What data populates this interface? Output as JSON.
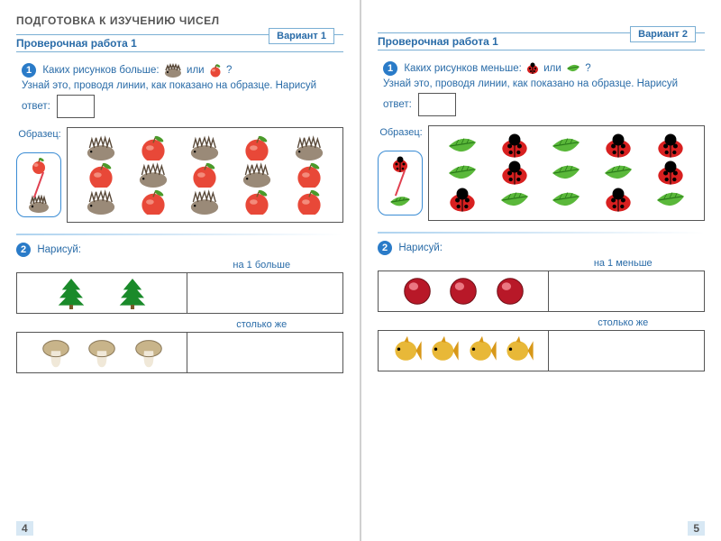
{
  "section_title": "ПОДГОТОВКА К ИЗУЧЕНИЮ ЧИСЕЛ",
  "left": {
    "work_title": "Проверочная работа 1",
    "variant": "Вариант 1",
    "task1": {
      "num": "1",
      "text_a": "Каких рисунков больше:",
      "text_b": "или",
      "text_c": "?",
      "text_d": "Узнай это, проводя линии, как показано на образце. Нарисуй ответ:"
    },
    "example_label": "Образец:",
    "example_pair": {
      "top": "apple",
      "bottom": "hedgehog"
    },
    "grid": {
      "rows": 3,
      "pattern": [
        [
          "hedgehog",
          "apple",
          "hedgehog",
          "apple",
          "hedgehog"
        ],
        [
          "apple",
          "hedgehog",
          "apple",
          "hedgehog",
          "apple"
        ],
        [
          "hedgehog",
          "apple",
          "hedgehog",
          "apple",
          "apple"
        ]
      ]
    },
    "task2": {
      "num": "2",
      "label": "Нарисуй:",
      "row1_label": "на 1 больше",
      "row1_items": {
        "type": "tree",
        "count": 2,
        "color": "#1a8a2a"
      },
      "row2_label": "столько же",
      "row2_items": {
        "type": "mushroom",
        "count": 3,
        "cap_color": "#c8b48a",
        "stem_color": "#f0e8d8"
      }
    },
    "page_num": "4"
  },
  "right": {
    "work_title": "Проверочная работа 1",
    "variant": "Вариант 2",
    "task1": {
      "num": "1",
      "text_a": "Каких рисунков меньше:",
      "text_b": "или",
      "text_c": "?",
      "text_d": "Узнай это, проводя линии, как показано на образце. Нарисуй ответ:"
    },
    "example_label": "Образец:",
    "example_pair": {
      "top": "ladybug",
      "bottom": "leaf"
    },
    "grid": {
      "rows": 3,
      "pattern": [
        [
          "leaf",
          "ladybug",
          "leaf",
          "ladybug",
          "ladybug"
        ],
        [
          "leaf",
          "ladybug",
          "leaf",
          "leaf",
          "ladybug"
        ],
        [
          "ladybug",
          "leaf",
          "leaf",
          "ladybug",
          "leaf"
        ]
      ]
    },
    "task2": {
      "num": "2",
      "label": "Нарисуй:",
      "row1_label": "на 1 меньше",
      "row1_items": {
        "type": "ball",
        "count": 3,
        "color": "#b81828"
      },
      "row2_label": "столько же",
      "row2_items": {
        "type": "fish",
        "count": 4,
        "color": "#e8b838"
      }
    },
    "page_num": "5"
  },
  "icons": {
    "hedgehog": {
      "body": "#9a8a78",
      "spines": "#5a4a3a"
    },
    "apple": {
      "fill": "#e84838",
      "leaf": "#4a9a2a"
    },
    "ladybug": {
      "body": "#d82020",
      "spots": "#000"
    },
    "leaf": {
      "fill": "#5ab83a",
      "vein": "#2a7a1a"
    },
    "tree": {
      "fill": "#1a8a2a",
      "trunk": "#7a5a2a"
    },
    "mushroom": {
      "cap": "#c8b48a",
      "stem": "#f0e8d8"
    },
    "ball": {
      "fill": "#b81828",
      "highlight": "#f89098"
    },
    "fish": {
      "body": "#e8b838",
      "fin": "#d89818"
    }
  },
  "colors": {
    "accent": "#2a6ca8",
    "border": "#555",
    "page_sep": "#d0d0d0"
  }
}
